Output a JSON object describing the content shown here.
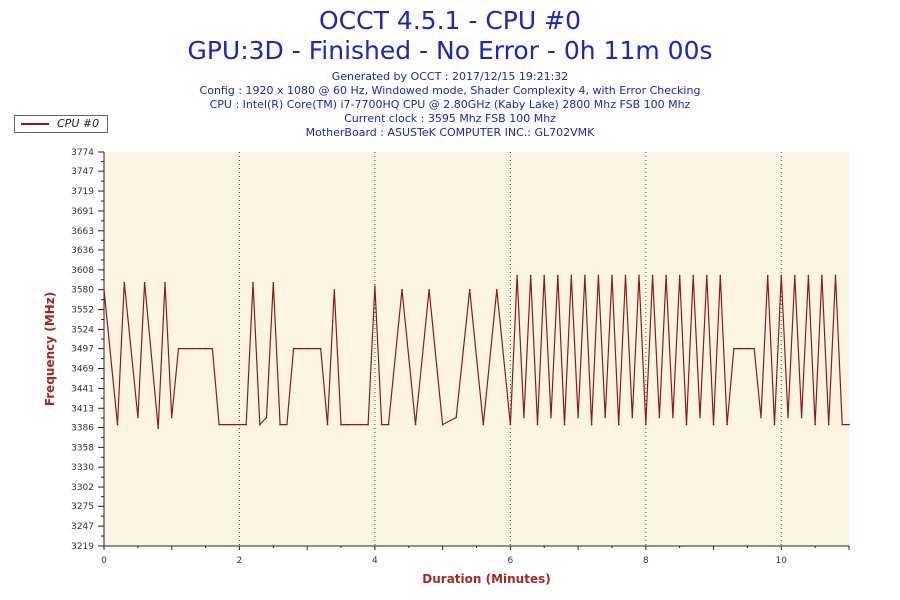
{
  "header": {
    "title": "OCCT 4.5.1 - CPU #0",
    "subtitle": "GPU:3D - Finished - No Error - 0h 11m 00s",
    "generated": "Generated by OCCT : 2017/12/15 19:21:32",
    "config": "Config : 1920 x 1080 @ 60 Hz, Windowed mode, Shader Complexity 4, with Error Checking",
    "cpu": "CPU : Intel(R) Core(TM) i7-7700HQ CPU @ 2.80GHz (Kaby Lake) 2800 Mhz FSB 100 Mhz",
    "clock": "Current clock : 3595 Mhz FSB 100 Mhz",
    "motherboard": "MotherBoard : ASUSTeK COMPUTER INC.: GL702VMK"
  },
  "colors": {
    "title": "#1a24c8",
    "series": "#8b1a1a",
    "plot_bg": "#fcf5e4",
    "axis_label": "#a5281e"
  },
  "chart_data": {
    "type": "line",
    "title": "OCCT 4.5.1 - CPU #0",
    "xlabel": "Duration (Minutes)",
    "ylabel": "Frequency (MHz)",
    "xlim": [
      0,
      11
    ],
    "ylim": [
      3219,
      3774
    ],
    "x_ticks": [
      "0",
      "2",
      "4",
      "6",
      "8",
      "10"
    ],
    "y_ticks": [
      "3219",
      "3247",
      "3275",
      "3302",
      "3330",
      "3358",
      "3386",
      "3413",
      "3441",
      "3469",
      "3497",
      "3524",
      "3552",
      "3580",
      "3608",
      "3636",
      "3663",
      "3691",
      "3719",
      "3747",
      "3774"
    ],
    "grid": "vertical dotted lines at x = 2, 4, 6, 8, 10",
    "legend_position": "top-left",
    "series": [
      {
        "name": "CPU #0",
        "levels": {
          "high": 3597,
          "mid": 3497,
          "low": 3390
        },
        "x": [
          0,
          0.2,
          0.3,
          0.5,
          0.6,
          0.8,
          0.9,
          1.0,
          1.1,
          1.3,
          1.5,
          1.6,
          1.7,
          1.8,
          1.85,
          1.9,
          2.0,
          2.1,
          2.2,
          2.3,
          2.4,
          2.5,
          2.6,
          2.7,
          2.8,
          2.9,
          3.0,
          3.1,
          3.2,
          3.3,
          3.4,
          3.5,
          3.6,
          3.7,
          3.8,
          3.9,
          4.0,
          4.1,
          4.2,
          4.4,
          4.6,
          4.8,
          5.0,
          5.2,
          5.4,
          5.6,
          5.8,
          6.0,
          6.1,
          6.2,
          6.3,
          6.4,
          6.5,
          6.6,
          6.7,
          6.8,
          6.9,
          7.0,
          7.1,
          7.2,
          7.3,
          7.4,
          7.5,
          7.6,
          7.7,
          7.8,
          7.9,
          8.0,
          8.1,
          8.2,
          8.3,
          8.4,
          8.5,
          8.6,
          8.7,
          8.8,
          8.9,
          9.0,
          9.1,
          9.2,
          9.3,
          9.4,
          9.5,
          9.6,
          9.7,
          9.8,
          9.9,
          10.0,
          10.1,
          10.2,
          10.3,
          10.4,
          10.5,
          10.6,
          10.7,
          10.8,
          10.9,
          11.0
        ],
        "values": [
          3580,
          3390,
          3590,
          3400,
          3590,
          3385,
          3590,
          3400,
          3497,
          3497,
          3497,
          3497,
          3390,
          3390,
          3390,
          3390,
          3390,
          3390,
          3590,
          3390,
          3400,
          3590,
          3390,
          3390,
          3497,
          3497,
          3497,
          3497,
          3497,
          3390,
          3580,
          3390,
          3390,
          3390,
          3390,
          3390,
          3585,
          3390,
          3390,
          3580,
          3390,
          3580,
          3390,
          3400,
          3580,
          3390,
          3580,
          3390,
          3600,
          3400,
          3600,
          3390,
          3600,
          3400,
          3600,
          3390,
          3600,
          3400,
          3600,
          3390,
          3600,
          3400,
          3600,
          3390,
          3600,
          3400,
          3600,
          3390,
          3600,
          3400,
          3600,
          3400,
          3600,
          3390,
          3600,
          3400,
          3600,
          3390,
          3600,
          3390,
          3497,
          3497,
          3497,
          3497,
          3400,
          3600,
          3390,
          3600,
          3400,
          3600,
          3400,
          3600,
          3390,
          3600,
          3390,
          3600,
          3390,
          3390
        ]
      }
    ]
  }
}
